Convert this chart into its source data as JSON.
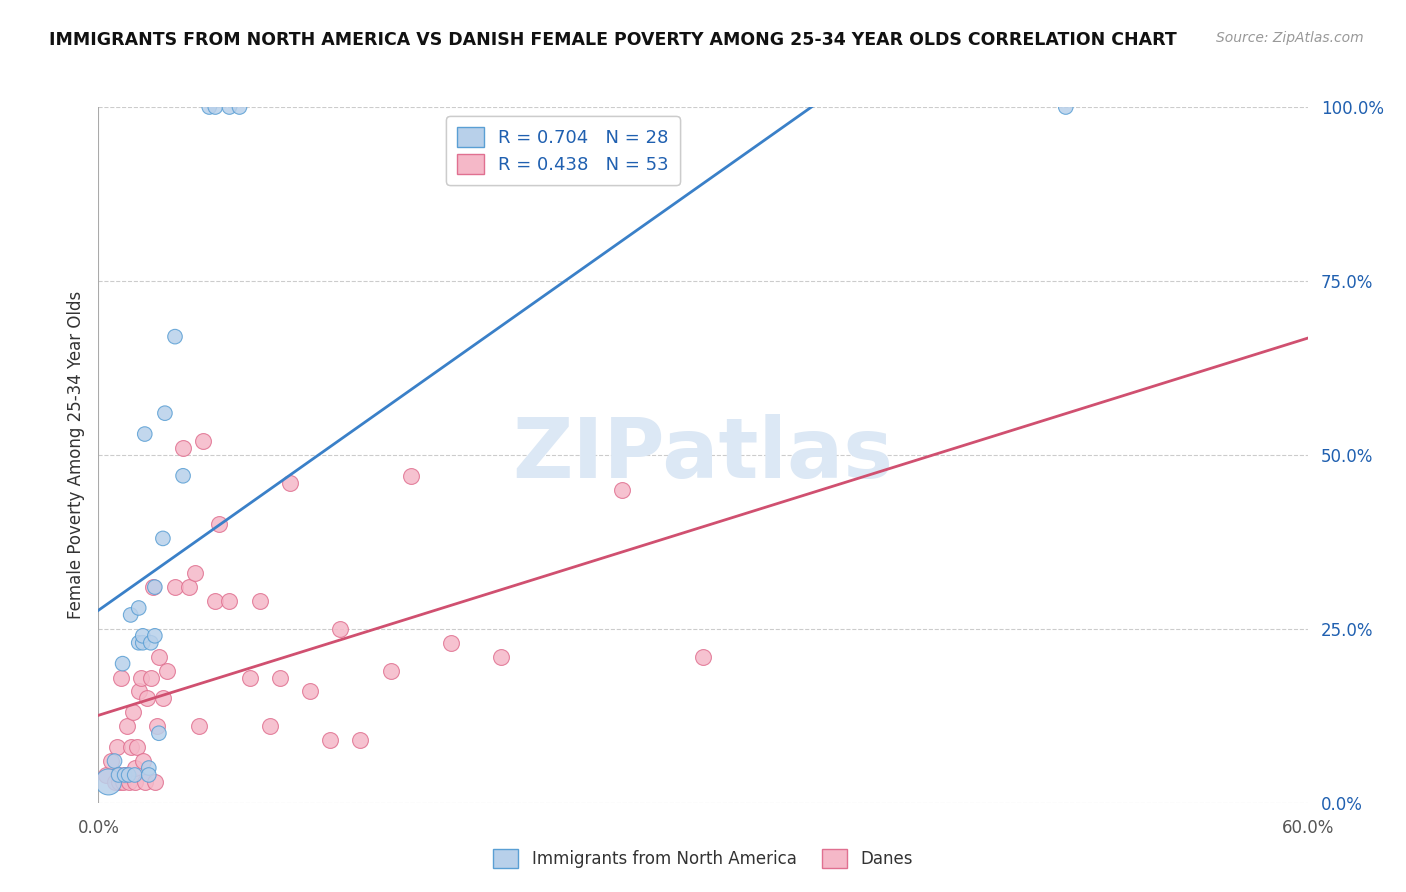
{
  "title": "IMMIGRANTS FROM NORTH AMERICA VS DANISH FEMALE POVERTY AMONG 25-34 YEAR OLDS CORRELATION CHART",
  "source": "Source: ZipAtlas.com",
  "ylabel": "Female Poverty Among 25-34 Year Olds",
  "xlim": [
    0.0,
    0.6
  ],
  "ylim": [
    0.0,
    1.0
  ],
  "xticks": [
    0.0,
    0.6
  ],
  "xtick_labels": [
    "0.0%",
    "60.0%"
  ],
  "yticks_right": [
    0.0,
    0.25,
    0.5,
    0.75,
    1.0
  ],
  "ytick_right_labels": [
    "0.0%",
    "25.0%",
    "50.0%",
    "75.0%",
    "100.0%"
  ],
  "legend_blue_r": "R = 0.704",
  "legend_blue_n": "N = 28",
  "legend_pink_r": "R = 0.438",
  "legend_pink_n": "N = 53",
  "blue_fill_color": "#b8d0ea",
  "pink_fill_color": "#f5b8c8",
  "blue_edge_color": "#5a9fd4",
  "pink_edge_color": "#e07090",
  "blue_line_color": "#3a80c8",
  "pink_line_color": "#d05070",
  "title_color": "#111111",
  "legend_value_color": "#2060b0",
  "axis_color": "#555555",
  "grid_color": "#cccccc",
  "background_color": "#ffffff",
  "watermark_text": "ZIPatlas",
  "watermark_color": "#dce8f5",
  "source_color": "#999999",
  "blue_scatter_x": [
    0.005,
    0.008,
    0.01,
    0.012,
    0.013,
    0.015,
    0.016,
    0.018,
    0.02,
    0.02,
    0.022,
    0.022,
    0.023,
    0.025,
    0.025,
    0.026,
    0.028,
    0.028,
    0.03,
    0.032,
    0.033,
    0.038,
    0.042,
    0.055,
    0.058,
    0.065,
    0.07,
    0.48
  ],
  "blue_scatter_y": [
    0.03,
    0.06,
    0.04,
    0.2,
    0.04,
    0.04,
    0.27,
    0.04,
    0.23,
    0.28,
    0.23,
    0.24,
    0.53,
    0.05,
    0.04,
    0.23,
    0.24,
    0.31,
    0.1,
    0.38,
    0.56,
    0.67,
    0.47,
    1.0,
    1.0,
    1.0,
    1.0,
    1.0
  ],
  "pink_scatter_x": [
    0.004,
    0.006,
    0.008,
    0.009,
    0.01,
    0.01,
    0.011,
    0.012,
    0.013,
    0.013,
    0.014,
    0.015,
    0.016,
    0.017,
    0.018,
    0.018,
    0.019,
    0.02,
    0.021,
    0.022,
    0.023,
    0.024,
    0.026,
    0.027,
    0.028,
    0.029,
    0.03,
    0.032,
    0.034,
    0.038,
    0.042,
    0.045,
    0.048,
    0.05,
    0.052,
    0.058,
    0.06,
    0.065,
    0.075,
    0.08,
    0.085,
    0.09,
    0.095,
    0.105,
    0.115,
    0.12,
    0.13,
    0.145,
    0.155,
    0.175,
    0.2,
    0.26,
    0.3
  ],
  "pink_scatter_y": [
    0.04,
    0.06,
    0.03,
    0.08,
    0.03,
    0.04,
    0.18,
    0.03,
    0.04,
    0.04,
    0.11,
    0.03,
    0.08,
    0.13,
    0.03,
    0.05,
    0.08,
    0.16,
    0.18,
    0.06,
    0.03,
    0.15,
    0.18,
    0.31,
    0.03,
    0.11,
    0.21,
    0.15,
    0.19,
    0.31,
    0.51,
    0.31,
    0.33,
    0.11,
    0.52,
    0.29,
    0.4,
    0.29,
    0.18,
    0.29,
    0.11,
    0.18,
    0.46,
    0.16,
    0.09,
    0.25,
    0.09,
    0.19,
    0.47,
    0.23,
    0.21,
    0.45,
    0.21
  ]
}
